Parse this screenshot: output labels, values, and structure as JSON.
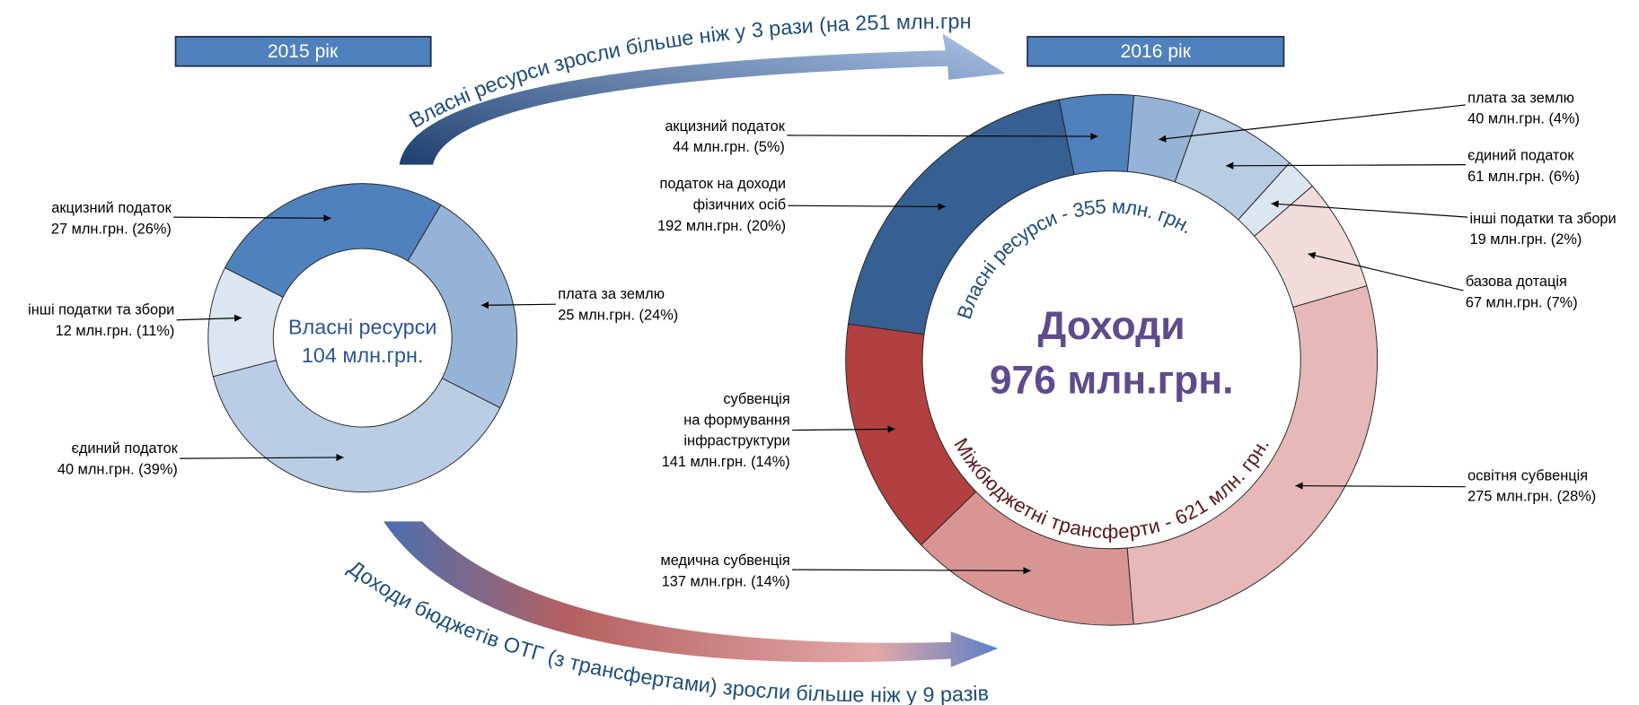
{
  "annotations": [
    "Власні ресурси зросли більше ніж у 3 рази (на 251 млн.грн.)",
    "Доходи бюджетів ОТГ (з трансфертами) зросли більше ніж у 9 разів"
  ],
  "chart_data": [
    {
      "type": "pie",
      "title": "2015 рік",
      "center_label": [
        "Власні ресурси",
        "104 млн.грн."
      ],
      "categories": [
        [
          "акцизний податок"
        ],
        [
          "плата за землю"
        ],
        [
          "єдиний податок"
        ],
        [
          "інші податки та збори"
        ]
      ],
      "values": [
        27,
        25,
        40,
        12
      ],
      "value_labels": [
        "27 млн.грн. (26%)",
        "25 млн.грн. (24%)",
        "40 млн.грн. (39%)",
        "12 млн.грн. (11%)"
      ],
      "colors": [
        "#4f81bd",
        "#95b3d7",
        "#b9cde5",
        "#dce6f2"
      ]
    },
    {
      "type": "pie",
      "title": "2016 рік",
      "center_label": [
        "Доходи",
        "976 млн.грн."
      ],
      "arc_labels": [
        "Власні ресурси - 355 млн. грн.",
        "Міжбюджетні трансферти - 621 млн. грн."
      ],
      "categories": [
        [
          "акцизний податок"
        ],
        [
          "плата за землю"
        ],
        [
          "єдиний податок"
        ],
        [
          "інші податки та збори"
        ],
        [
          "базова дотація"
        ],
        [
          "освітня субвенція"
        ],
        [
          "медична субвенція"
        ],
        [
          "субвенція",
          "на формування",
          "інфраструктури"
        ],
        [
          "податок на доходи",
          "фізичних осіб"
        ]
      ],
      "values": [
        44,
        40,
        61,
        19,
        67,
        275,
        137,
        141,
        192
      ],
      "value_labels": [
        "44 млн.грн. (5%)",
        "40 млн.грн. (4%)",
        "61 млн.грн. (6%)",
        "19 млн.грн. (2%)",
        "67 млн.грн. (7%)",
        "275 млн.грн. (28%)",
        "137 млн.грн. (14%)",
        "141 млн.грн. (14%)",
        "192 млн.грн. (20%)"
      ],
      "colors": [
        "#4f81bd",
        "#95b3d7",
        "#b8cce4",
        "#dce6f1",
        "#f2dcdb",
        "#e6b9b8",
        "#d99594",
        "#b24040",
        "#366092"
      ]
    }
  ]
}
